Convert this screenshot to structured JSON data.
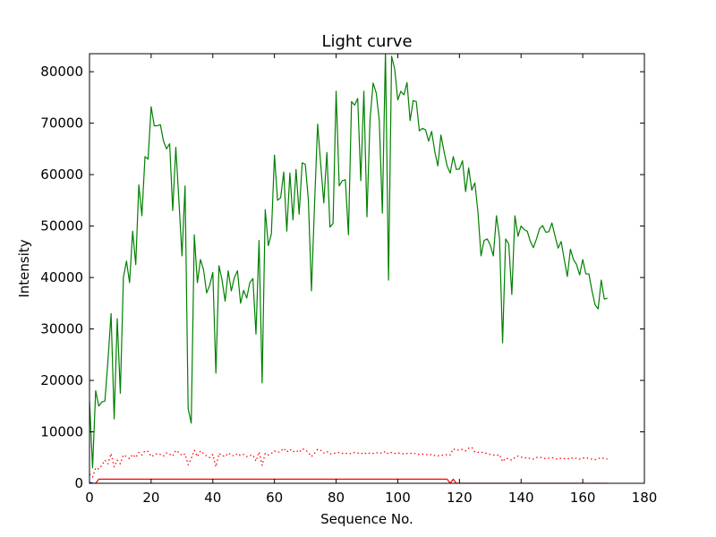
{
  "chart_data": {
    "type": "line",
    "title": "Light curve",
    "xlabel": "Sequence No.",
    "ylabel": "Intensity",
    "xlim": [
      0,
      180
    ],
    "ylim": [
      0,
      83500
    ],
    "grid": false,
    "legend": "none",
    "x_ticks": [
      0,
      20,
      40,
      60,
      80,
      100,
      120,
      140,
      160,
      180
    ],
    "y_ticks": [
      0,
      10000,
      20000,
      30000,
      40000,
      50000,
      60000,
      70000,
      80000
    ],
    "x_tick_labels": [
      "0",
      "20",
      "40",
      "60",
      "80",
      "100",
      "120",
      "140",
      "160",
      "180"
    ],
    "y_tick_labels": [
      "0",
      "10000",
      "20000",
      "30000",
      "40000",
      "50000",
      "60000",
      "70000",
      "80000"
    ],
    "series": [
      {
        "color": "#008000",
        "style": "solid",
        "x": [
          0,
          1,
          2,
          3,
          4,
          5,
          6,
          7,
          8,
          9,
          10,
          11,
          12,
          13,
          14,
          15,
          16,
          17,
          18,
          19,
          20,
          21,
          22,
          23,
          24,
          25,
          26,
          27,
          28,
          29,
          30,
          31,
          32,
          33,
          34,
          35,
          36,
          37,
          38,
          39,
          40,
          41,
          42,
          43,
          44,
          45,
          46,
          47,
          48,
          49,
          50,
          51,
          52,
          53,
          54,
          55,
          56,
          57,
          58,
          59,
          60,
          61,
          62,
          63,
          64,
          65,
          66,
          67,
          68,
          69,
          70,
          71,
          72,
          73,
          74,
          75,
          76,
          77,
          78,
          79,
          80,
          81,
          82,
          83,
          84,
          85,
          86,
          87,
          88,
          89,
          90,
          91,
          92,
          93,
          94,
          95,
          96,
          97,
          98,
          99,
          100,
          101,
          102,
          103,
          104,
          105,
          106,
          107,
          108,
          109,
          110,
          111,
          112,
          113,
          114,
          115,
          116,
          117,
          118,
          119,
          120,
          121,
          122,
          123,
          124,
          125,
          126,
          127,
          128,
          129,
          130,
          131,
          132,
          133,
          134,
          135,
          136,
          137,
          138,
          139,
          140,
          141,
          142,
          143,
          144,
          145,
          146,
          147,
          148,
          149,
          150,
          151,
          152,
          153,
          154,
          155,
          156,
          157,
          158,
          159,
          160,
          161,
          162,
          163,
          164,
          165,
          166,
          167,
          168
        ],
        "values": [
          16000,
          3000,
          18000,
          15000,
          15800,
          16000,
          24000,
          33000,
          12500,
          32000,
          17500,
          40000,
          43200,
          39000,
          49000,
          42500,
          58000,
          52000,
          63500,
          63000,
          73200,
          69500,
          69500,
          69700,
          66500,
          65000,
          66000,
          53000,
          65300,
          55000,
          44200,
          57800,
          14500,
          11700,
          48300,
          39000,
          43500,
          41500,
          37000,
          38500,
          41000,
          21400,
          42300,
          39500,
          35400,
          41300,
          37400,
          40000,
          41300,
          35000,
          37500,
          36000,
          39000,
          39800,
          29000,
          47200,
          19500,
          53200,
          46200,
          48500,
          63800,
          55000,
          55500,
          60500,
          49000,
          60300,
          51200,
          61000,
          52300,
          62300,
          62000,
          55000,
          37400,
          54200,
          69800,
          62000,
          54500,
          64300,
          49800,
          50500,
          76200,
          57800,
          58800,
          59000,
          48300,
          74200,
          73500,
          74800,
          58800,
          76200,
          51800,
          70700,
          77800,
          75900,
          70500,
          52500,
          84000,
          39500,
          83000,
          80500,
          74500,
          76200,
          75500,
          77900,
          70500,
          74400,
          74200,
          68500,
          69000,
          68700,
          66500,
          68400,
          64500,
          61700,
          67700,
          64500,
          61700,
          60300,
          63500,
          61000,
          61100,
          62700,
          56700,
          61300,
          57000,
          58400,
          52800,
          44200,
          47200,
          47500,
          46300,
          44200,
          52000,
          47700,
          27300,
          47500,
          46500,
          36700,
          52000,
          48000,
          50000,
          49300,
          49000,
          47000,
          45800,
          47500,
          49500,
          50100,
          48800,
          48900,
          50600,
          48100,
          45700,
          47000,
          43500,
          40200,
          45500,
          43500,
          42500,
          40500,
          43500,
          40700,
          40700,
          37400,
          34700,
          33900,
          39500,
          35800,
          36000
        ]
      },
      {
        "color": "#ff0000",
        "style": "dotted",
        "x": [
          0,
          1,
          2,
          3,
          4,
          5,
          6,
          7,
          8,
          9,
          10,
          11,
          12,
          13,
          14,
          15,
          16,
          17,
          18,
          19,
          20,
          21,
          22,
          23,
          24,
          25,
          26,
          27,
          28,
          29,
          30,
          31,
          32,
          33,
          34,
          35,
          36,
          37,
          38,
          39,
          40,
          41,
          42,
          43,
          44,
          45,
          46,
          47,
          48,
          49,
          50,
          51,
          52,
          53,
          54,
          55,
          56,
          57,
          58,
          59,
          60,
          61,
          62,
          63,
          64,
          65,
          66,
          67,
          68,
          69,
          70,
          71,
          72,
          73,
          74,
          75,
          76,
          77,
          78,
          79,
          80,
          81,
          82,
          83,
          84,
          85,
          86,
          87,
          88,
          89,
          90,
          91,
          92,
          93,
          94,
          95,
          96,
          97,
          98,
          99,
          100,
          101,
          102,
          103,
          104,
          105,
          106,
          107,
          108,
          109,
          110,
          111,
          112,
          113,
          114,
          115,
          116,
          117,
          118,
          119,
          120,
          121,
          122,
          123,
          124,
          125,
          126,
          127,
          128,
          129,
          130,
          131,
          132,
          133,
          134,
          135,
          136,
          137,
          138,
          139,
          140,
          141,
          142,
          143,
          144,
          145,
          146,
          147,
          148,
          149,
          150,
          151,
          152,
          153,
          154,
          155,
          156,
          157,
          158,
          159,
          160,
          161,
          162,
          163,
          164,
          165,
          166,
          167,
          168
        ],
        "values": [
          1800,
          1200,
          3000,
          2800,
          3500,
          4500,
          3800,
          5800,
          3200,
          4500,
          3800,
          5500,
          5200,
          4800,
          5600,
          5000,
          6000,
          5500,
          6300,
          6200,
          5200,
          5500,
          5800,
          5600,
          5300,
          5900,
          5700,
          5300,
          6400,
          6000,
          5400,
          5700,
          3600,
          4800,
          6400,
          5200,
          6300,
          5800,
          5300,
          5000,
          5600,
          3200,
          5800,
          5400,
          5200,
          5900,
          5500,
          5300,
          5800,
          5400,
          5600,
          5200,
          5400,
          5500,
          4300,
          6100,
          3500,
          5800,
          5500,
          5800,
          6300,
          6000,
          6200,
          6800,
          6100,
          6600,
          6100,
          6400,
          6000,
          6700,
          6500,
          6000,
          5200,
          5800,
          6600,
          6400,
          5900,
          6200,
          5700,
          5800,
          5900,
          6000,
          5800,
          5900,
          5700,
          5800,
          6000,
          5900,
          5700,
          6000,
          5700,
          5900,
          5800,
          5900,
          6000,
          5800,
          6200,
          5700,
          6000,
          5800,
          5900,
          5800,
          5700,
          5800,
          5800,
          5900,
          5700,
          5600,
          5700,
          5600,
          5500,
          5600,
          5400,
          5300,
          5500,
          5400,
          5600,
          5500,
          6700,
          6400,
          6500,
          6600,
          6300,
          6800,
          7000,
          6100,
          6000,
          6100,
          5900,
          5800,
          5600,
          5500,
          5400,
          5600,
          4200,
          4900,
          4700,
          4500,
          5000,
          5300,
          5100,
          4900,
          5000,
          4800,
          4700,
          5000,
          5100,
          4900,
          4800,
          4900,
          5000,
          4800,
          4700,
          4900,
          4800,
          4700,
          5000,
          4800,
          4900,
          4700,
          4900,
          5000,
          4800,
          4700,
          4600,
          4800,
          5000,
          4800,
          4700
        ]
      },
      {
        "color": "#ff0000",
        "style": "solid",
        "x": [
          0,
          2,
          3,
          116,
          117,
          118,
          119,
          168
        ],
        "values": [
          0,
          0,
          800,
          800,
          0,
          800,
          0,
          0
        ]
      },
      {
        "color": "#0000ff",
        "style": "solid",
        "x": [
          0,
          1
        ],
        "values": [
          100,
          100
        ]
      }
    ]
  }
}
